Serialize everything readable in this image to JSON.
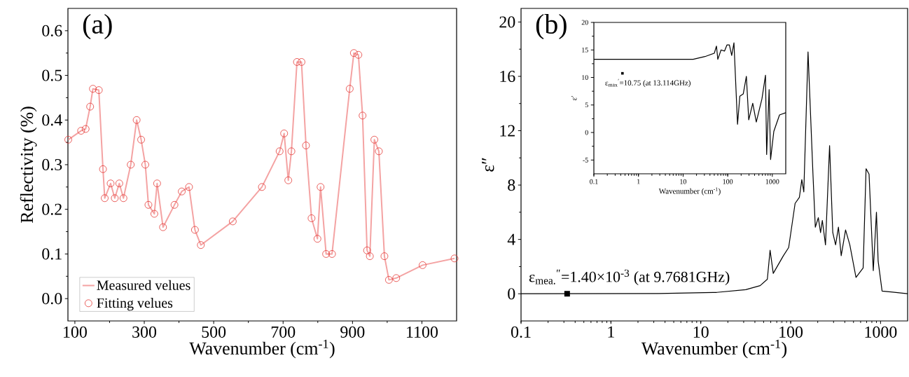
{
  "chart_data": [
    {
      "type": "line",
      "annotations": [
        "(a)"
      ],
      "xlabel": "Wavenumber (cm$^{-1}$)",
      "ylabel": "Reflectivity (%)",
      "xlim": [
        80,
        1200
      ],
      "ylim": [
        -0.05,
        0.65
      ],
      "xticks": [
        100,
        300,
        500,
        700,
        900,
        1100
      ],
      "yticks": [
        {
          "value": 0,
          "label": "0.0"
        },
        0.1,
        0.2,
        0.3,
        0.4,
        0.5,
        0.6
      ],
      "legend": "bottom left",
      "x": [
        81,
        118,
        131,
        144,
        152,
        169,
        181,
        186,
        203,
        215,
        228,
        240,
        261,
        278,
        291,
        303,
        312,
        329,
        337,
        354,
        387,
        408,
        429,
        446,
        463,
        555,
        639,
        690,
        703,
        715,
        724,
        740,
        753,
        766,
        782,
        799,
        808,
        824,
        841,
        892,
        904,
        917,
        929,
        942,
        950,
        963,
        976,
        992,
        1005,
        1026,
        1102,
        1194
      ],
      "series": [
        {
          "name": "Measured velues",
          "type": "line",
          "color": "#f4a3a3",
          "values": [
            0.356,
            0.376,
            0.38,
            0.43,
            0.47,
            0.467,
            0.29,
            0.225,
            0.258,
            0.225,
            0.258,
            0.225,
            0.3,
            0.4,
            0.356,
            0.3,
            0.21,
            0.19,
            0.258,
            0.16,
            0.21,
            0.24,
            0.25,
            0.154,
            0.12,
            0.173,
            0.25,
            0.33,
            0.37,
            0.265,
            0.33,
            0.53,
            0.53,
            0.343,
            0.18,
            0.134,
            0.25,
            0.1,
            0.1,
            0.47,
            0.55,
            0.546,
            0.41,
            0.108,
            0.095,
            0.356,
            0.33,
            0.095,
            0.042,
            0.046,
            0.075,
            0.09
          ]
        },
        {
          "name": "Fitting velues",
          "type": "scatter",
          "marker": "circle",
          "color": "#e53935",
          "values": [
            0.356,
            0.376,
            0.38,
            0.43,
            0.47,
            0.467,
            0.29,
            0.225,
            0.258,
            0.225,
            0.258,
            0.225,
            0.3,
            0.4,
            0.356,
            0.3,
            0.21,
            0.19,
            0.258,
            0.16,
            0.21,
            0.24,
            0.25,
            0.154,
            0.12,
            0.173,
            0.25,
            0.33,
            0.37,
            0.265,
            0.33,
            0.53,
            0.53,
            0.343,
            0.18,
            0.134,
            0.25,
            0.1,
            0.1,
            0.47,
            0.55,
            0.546,
            0.41,
            0.108,
            0.095,
            0.356,
            0.33,
            0.095,
            0.042,
            0.046,
            0.075,
            0.09
          ]
        }
      ]
    },
    {
      "type": "line",
      "log": "x",
      "annotations": [
        "(b)",
        {
          "text": "ε$_{mea.}$$^{″}$=1.40×10$^{-3}$ (at 9.7681GHz)",
          "x": 0.3258,
          "y": 0.0014
        }
      ],
      "xlabel": "Wavenumber (cm$^{-1}$)",
      "ylabel": "ε″",
      "xlim": [
        0.1,
        2000
      ],
      "ylim": [
        -2,
        21
      ],
      "xticks": [
        0.1,
        1,
        10,
        100,
        1000
      ],
      "yticks": [
        0,
        4,
        8,
        12,
        16,
        20
      ],
      "series": [
        {
          "color": "#000000",
          "x": [
            0.1,
            3.4,
            15,
            31.6,
            45.7,
            55,
            59,
            64,
            83,
            95,
            112,
            125,
            133,
            140,
            156,
            177,
            188,
            203,
            215,
            225,
            244,
            271,
            294,
            316,
            340,
            365,
            408,
            455,
            533,
            640,
            690,
            745,
            830,
            900,
            940,
            1040,
            2000
          ],
          "values": [
            0,
            0.02,
            0.1,
            0.3,
            0.6,
            1.07,
            3.2,
            1.5,
            2.8,
            3.4,
            6.65,
            7.1,
            8.4,
            7.5,
            17.8,
            8.8,
            4.9,
            5.6,
            4.5,
            5.4,
            3.6,
            10.9,
            4.5,
            3.6,
            4.9,
            2.8,
            4.7,
            3.6,
            1.2,
            1.9,
            9.2,
            8.8,
            1.7,
            6.0,
            2.4,
            0.2,
            0
          ]
        }
      ]
    },
    {
      "type": "line",
      "log": "x",
      "annotations": [
        {
          "text": "ε$_{max}$$^{′}$=10.75 (at 13.114GHz)",
          "x": 0.437,
          "y": 10.75
        }
      ],
      "xlabel": "Wavenumber (cm$^{-1}$)",
      "ylabel": "ε′",
      "xlim": [
        0.1,
        2000
      ],
      "ylim": [
        -7.5,
        20
      ],
      "xticks": [
        0.1,
        1,
        10,
        100,
        1000
      ],
      "yticks": [
        -5,
        0,
        5,
        10,
        15,
        20
      ],
      "series": [
        {
          "color": "#000000",
          "x": [
            0.1,
            16.8,
            31,
            50,
            56,
            60,
            71,
            85,
            96,
            109,
            123,
            138,
            166,
            187,
            223,
            262,
            296,
            364,
            437,
            585,
            703,
            746,
            848,
            914,
            1080,
            1450,
            2000
          ],
          "values": [
            13.3,
            13.3,
            13.8,
            14.4,
            15.7,
            13.3,
            15.0,
            14.8,
            15.9,
            15.9,
            14.0,
            16.3,
            1.5,
            6.6,
            7.0,
            10.2,
            2.3,
            5.3,
            1.9,
            6.1,
            10.4,
            -4.0,
            7.8,
            -4.9,
            0.2,
            3.2,
            3.6
          ]
        }
      ]
    }
  ]
}
